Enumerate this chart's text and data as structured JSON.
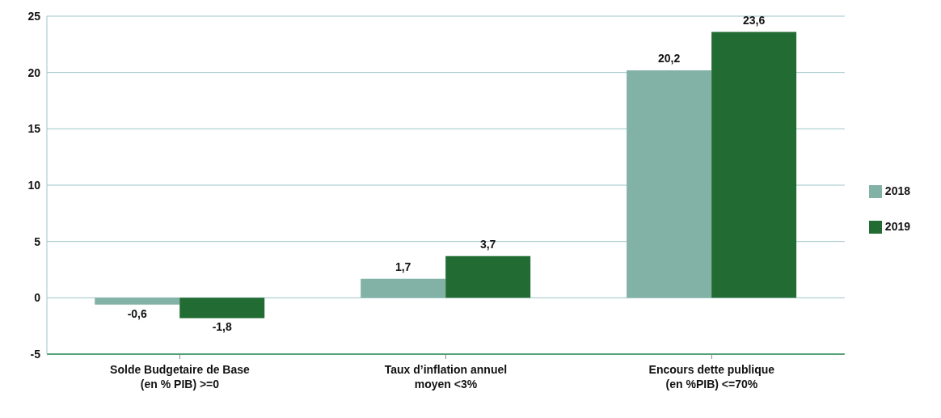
{
  "chart_data": {
    "type": "bar",
    "categories": [
      "Solde Budgetaire de Base (en % PIB) >=0",
      "Taux d’inflation annuel moyen <3%",
      "Encours dette publique (en %PIB) <=70%"
    ],
    "series": [
      {
        "name": "2018",
        "color": "#82b2a6",
        "values": [
          -0.6,
          1.7,
          20.2
        ],
        "value_labels": [
          "-0,6",
          "1,7",
          "20,2"
        ]
      },
      {
        "name": "2019",
        "color": "#226b33",
        "values": [
          -1.8,
          3.7,
          23.6
        ],
        "value_labels": [
          "-1,8",
          "3,7",
          "23,6"
        ]
      }
    ],
    "ylim": [
      -5,
      25
    ],
    "yticks": [
      -5,
      0,
      5,
      10,
      15,
      20,
      25
    ],
    "grid": "y",
    "legend": "right"
  }
}
